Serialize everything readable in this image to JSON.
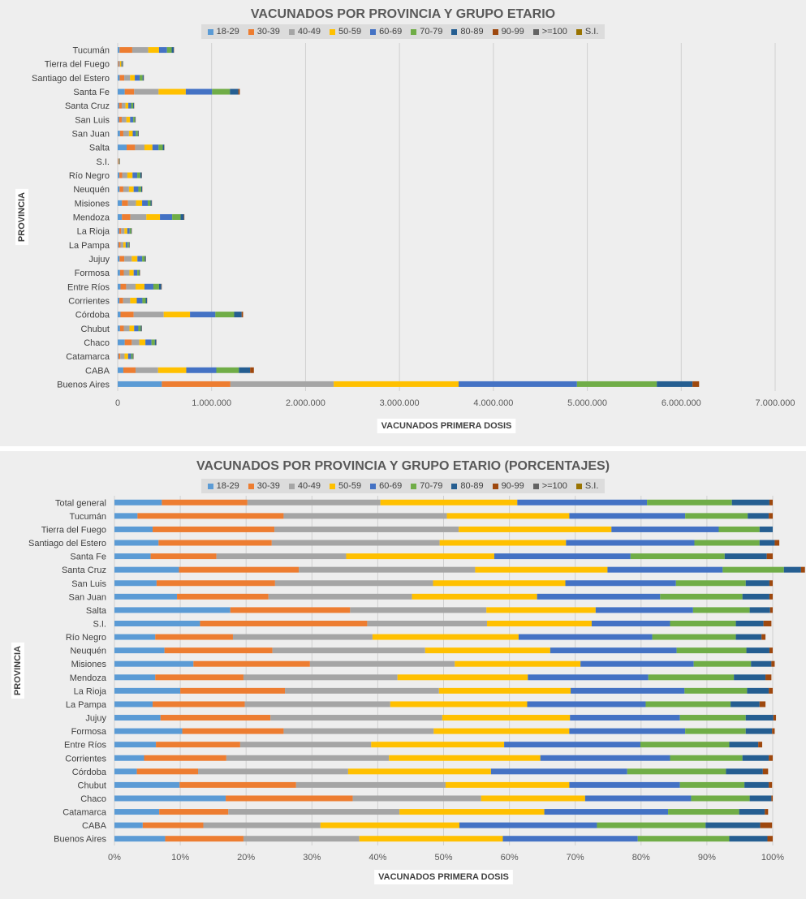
{
  "chart_data": [
    {
      "type": "bar",
      "orientation": "horizontal",
      "stacked": true,
      "title": "VACUNADOS POR PROVINCIA Y GRUPO ETARIO",
      "xlabel": "VACUNADOS PRIMERA  DOSIS",
      "ylabel": "PROVINCIA",
      "xlim": [
        0,
        7000000
      ],
      "xticks": [
        0,
        1000000,
        2000000,
        3000000,
        4000000,
        5000000,
        6000000,
        7000000
      ],
      "xtick_labels": [
        "0",
        "1.000.000",
        "2.000.000",
        "3.000.000",
        "4.000.000",
        "5.000.000",
        "6.000.000",
        "7.000.000"
      ],
      "grid": true,
      "legend_position": "top",
      "categories": [
        "Tucumán",
        "Tierra del Fuego",
        "Santiago del Estero",
        "Santa Fe",
        "Santa Cruz",
        "San Luis",
        "San Juan",
        "Salta",
        "S.I.",
        "Río Negro",
        "Neuquén",
        "Misiones",
        "Mendoza",
        "La Rioja",
        "La Pampa",
        "Jujuy",
        "Formosa",
        "Entre Ríos",
        "Corrientes",
        "Córdoba",
        "Chubut",
        "Chaco",
        "Catamarca",
        "CABA",
        "Buenos Aires"
      ],
      "series": [
        {
          "name": "18-29",
          "values": [
            20000,
            4000,
            21000,
            75000,
            15000,
            14000,
            25000,
            95000,
            3000,
            18000,
            20000,
            45000,
            45000,
            15000,
            10000,
            20000,
            25000,
            30000,
            18000,
            30000,
            25000,
            75000,
            10000,
            60000,
            470000
          ]
        },
        {
          "name": "30-39",
          "values": [
            135000,
            10000,
            49000,
            100000,
            28000,
            29000,
            35000,
            90000,
            6000,
            30000,
            40000,
            65000,
            90000,
            22000,
            20000,
            50000,
            40000,
            60000,
            40000,
            140000,
            40000,
            75000,
            18000,
            130000,
            730000
          ]
        },
        {
          "name": "40-49",
          "values": [
            170000,
            12000,
            62000,
            260000,
            40000,
            49000,
            60000,
            100000,
            4000,
            55000,
            60000,
            85000,
            170000,
            35000,
            30000,
            80000,
            60000,
            100000,
            75000,
            320000,
            60000,
            80000,
            45000,
            240000,
            1100000
          ]
        },
        {
          "name": "50-59",
          "values": [
            115000,
            13000,
            50000,
            290000,
            30000,
            40000,
            40000,
            85000,
            3000,
            55000,
            50000,
            65000,
            145000,
            30000,
            25000,
            60000,
            45000,
            95000,
            70000,
            280000,
            50000,
            65000,
            38000,
            300000,
            1330000
          ]
        },
        {
          "name": "60-69",
          "values": [
            85000,
            10000,
            51000,
            280000,
            30000,
            33000,
            33000,
            65000,
            2000,
            50000,
            50000,
            60000,
            130000,
            25000,
            20000,
            50000,
            38000,
            95000,
            60000,
            270000,
            45000,
            65000,
            32000,
            320000,
            1260000
          ]
        },
        {
          "name": "70-79",
          "values": [
            50000,
            4000,
            32000,
            190000,
            22000,
            17000,
            21000,
            45000,
            2000,
            32000,
            30000,
            30000,
            90000,
            15000,
            14000,
            28000,
            20000,
            60000,
            35000,
            200000,
            25000,
            35000,
            18000,
            240000,
            850000
          ]
        },
        {
          "name": "80-89",
          "values": [
            22000,
            2500,
            11000,
            90000,
            8000,
            6500,
            8000,
            15000,
            1000,
            15000,
            10000,
            12000,
            35000,
            6000,
            6000,
            10000,
            8000,
            25000,
            13000,
            80000,
            10000,
            15000,
            6000,
            120000,
            380000
          ]
        },
        {
          "name": "90-99",
          "values": [
            3000,
            500,
            1500,
            15000,
            800,
            500,
            800,
            1500,
            200,
            1500,
            1000,
            1500,
            5000,
            700,
            800,
            1000,
            800,
            4000,
            1000,
            15000,
            1000,
            1500,
            700,
            40000,
            70000
          ]
        },
        {
          "name": ">=100",
          "values": [
            0,
            0,
            0,
            0,
            0,
            0,
            0,
            0,
            0,
            0,
            0,
            0,
            0,
            0,
            0,
            0,
            0,
            0,
            0,
            0,
            0,
            0,
            0,
            0,
            0
          ]
        },
        {
          "name": "S.I.",
          "values": [
            0,
            0,
            0,
            0,
            0,
            0,
            0,
            0,
            0,
            0,
            0,
            0,
            0,
            0,
            0,
            0,
            0,
            0,
            0,
            0,
            0,
            0,
            0,
            0,
            0
          ]
        }
      ]
    },
    {
      "type": "bar",
      "orientation": "horizontal",
      "stacked": true,
      "percent": true,
      "title": "VACUNADOS POR PROVINCIA Y GRUPO ETARIO (PORCENTAJES)",
      "xlabel": "VACUNADOS PRIMERA  DOSIS",
      "ylabel": "PROVINCIA",
      "xlim": [
        0,
        100
      ],
      "xticks": [
        0,
        10,
        20,
        30,
        40,
        50,
        60,
        70,
        80,
        90,
        100
      ],
      "xtick_labels": [
        "0%",
        "10%",
        "20%",
        "30%",
        "40%",
        "50%",
        "60%",
        "70%",
        "80%",
        "90%",
        "100%"
      ],
      "grid": true,
      "legend_position": "top",
      "categories": [
        "Total general",
        "Tucumán",
        "Tierra del Fuego",
        "Santiago del Estero",
        "Santa Fe",
        "Santa Cruz",
        "San Luis",
        "San Juan",
        "Salta",
        "S.I.",
        "Río Negro",
        "Neuquén",
        "Misiones",
        "Mendoza",
        "La Rioja",
        "La Pampa",
        "Jujuy",
        "Formosa",
        "Entre Ríos",
        "Corrientes",
        "Córdoba",
        "Chubut",
        "Chaco",
        "Catamarca",
        "CABA",
        "Buenos Aires"
      ],
      "series": [
        {
          "name": "18-29",
          "values": [
            7.2,
            3.5,
            5.8,
            6.7,
            5.5,
            9.8,
            6.4,
            9.5,
            17.6,
            13,
            6.2,
            7.6,
            12,
            6.2,
            10,
            5.8,
            7,
            10.3,
            6.3,
            4.5,
            3.4,
            9.9,
            16.9,
            6.8,
            4.3,
            7.7
          ]
        },
        {
          "name": "30-39",
          "values": [
            13,
            22.2,
            18.5,
            17.2,
            10,
            18.2,
            18,
            13.9,
            18.2,
            25.4,
            11.8,
            16.4,
            17.7,
            13.4,
            15.9,
            14,
            16.7,
            15.4,
            12.8,
            12.5,
            9.3,
            17.7,
            19.3,
            10.5,
            9.2,
            11.9
          ]
        },
        {
          "name": "40-49",
          "values": [
            20.2,
            24.8,
            28,
            25.5,
            19.7,
            26.8,
            24,
            21.8,
            20.7,
            18.2,
            21.2,
            23.2,
            22,
            23.4,
            23.4,
            22.1,
            26.1,
            22.8,
            19.9,
            24.7,
            22.8,
            22.7,
            19.5,
            26,
            17.8,
            17.6
          ]
        },
        {
          "name": "50-59",
          "values": [
            20.8,
            18.6,
            23.2,
            19.2,
            22.5,
            20.1,
            20.1,
            19,
            16.6,
            15.9,
            22.2,
            19,
            19.1,
            19.8,
            20,
            20.8,
            19.4,
            20.6,
            20.2,
            23,
            21.7,
            18.8,
            15.8,
            22,
            21.1,
            21.8
          ]
        },
        {
          "name": "60-69",
          "values": [
            19.7,
            17.6,
            16.3,
            19.5,
            20.7,
            17.5,
            16.8,
            18.7,
            14.8,
            11.9,
            20.3,
            19.2,
            17.2,
            18.3,
            17.3,
            18,
            16.7,
            17.6,
            20.7,
            19.7,
            20.7,
            16.8,
            16.1,
            18.8,
            20.9,
            20.5
          ]
        },
        {
          "name": "70-79",
          "values": [
            12.9,
            9.5,
            6.2,
            9.9,
            14.3,
            9.3,
            10.6,
            12.5,
            8.6,
            10,
            12.7,
            10.6,
            8.7,
            13,
            9.5,
            12.9,
            10,
            9.2,
            13.5,
            11,
            15,
            9.8,
            8.9,
            10.8,
            16.5,
            13.9
          ]
        },
        {
          "name": "80-89",
          "values": [
            5.7,
            3.2,
            2,
            2.3,
            6.4,
            2.6,
            3.6,
            4.1,
            3.1,
            4.2,
            3.9,
            3.5,
            3.1,
            4.8,
            3.3,
            4.4,
            4.2,
            4,
            4.4,
            4,
            5.6,
            3.7,
            3.3,
            3.9,
            8.3,
            5.8
          ]
        },
        {
          "name": "90-99",
          "values": [
            0.5,
            0.6,
            0,
            0.7,
            0.9,
            0.6,
            0.5,
            0.5,
            0.4,
            1.2,
            0.6,
            0.5,
            0.5,
            0.9,
            0.6,
            0.9,
            0.4,
            0.4,
            0.6,
            0.6,
            0.8,
            0.5,
            0.2,
            0.5,
            1.8,
            0.8
          ]
        },
        {
          "name": ">=100",
          "values": [
            0,
            0,
            0,
            0,
            0,
            0,
            0,
            0,
            0,
            0,
            0,
            0,
            0,
            0,
            0,
            0,
            0,
            0,
            0,
            0,
            0,
            0,
            0,
            0,
            0,
            0
          ]
        },
        {
          "name": "S.I.",
          "values": [
            0,
            0,
            0,
            0,
            0,
            0,
            0,
            0,
            0,
            0,
            0,
            0,
            0,
            0,
            0,
            0,
            0,
            0,
            0,
            0,
            0,
            0,
            0,
            0,
            0,
            0
          ]
        }
      ]
    }
  ],
  "colors": {
    "18-29": "#5b9bd5",
    "30-39": "#ed7d31",
    "40-49": "#a5a5a5",
    "50-59": "#ffc000",
    "60-69": "#4472c4",
    "70-79": "#70ad47",
    "80-89": "#255e91",
    "90-99": "#9e480e",
    ">=100": "#636363",
    "S.I.": "#997300"
  }
}
